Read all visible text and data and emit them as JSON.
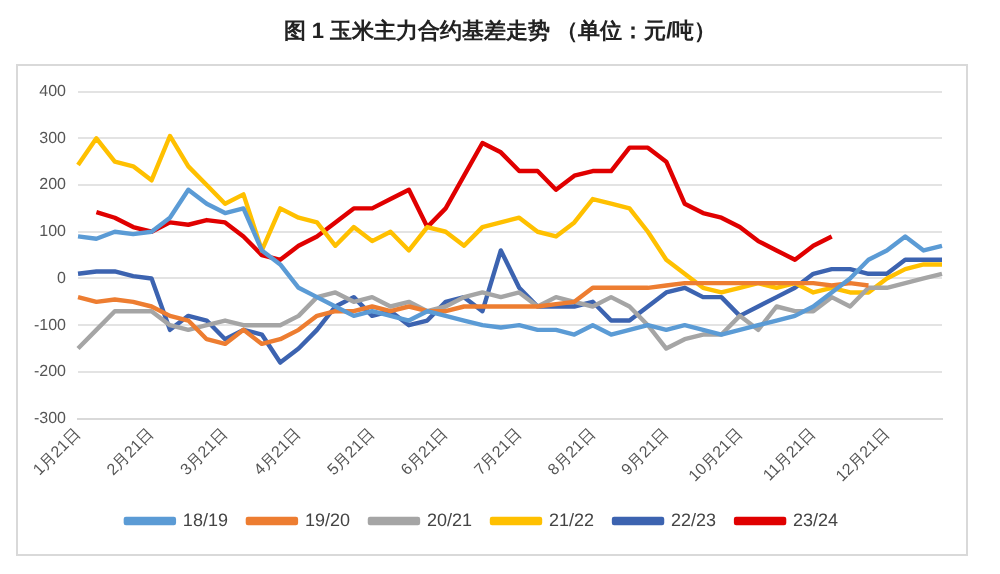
{
  "chart_data": {
    "type": "line",
    "title": "图 1  玉米主力合约基差走势  （单位：元/吨）",
    "categories": [
      "1月21日",
      null,
      null,
      null,
      "2月21日",
      null,
      null,
      null,
      "3月21日",
      null,
      null,
      null,
      "4月21日",
      null,
      null,
      null,
      "5月21日",
      null,
      null,
      null,
      "6月21日",
      null,
      null,
      null,
      "7月21日",
      null,
      null,
      null,
      "8月21日",
      null,
      null,
      null,
      "9月21日",
      null,
      null,
      null,
      "10月21日",
      null,
      null,
      null,
      "11月21日",
      null,
      null,
      null,
      "12月21日",
      null,
      null,
      null
    ],
    "series": [
      {
        "name": "18/19",
        "color": "#5b9bd5",
        "values": [
          90,
          85,
          100,
          95,
          100,
          130,
          190,
          160,
          140,
          150,
          60,
          30,
          -20,
          -40,
          -60,
          -80,
          -70,
          -80,
          -90,
          -70,
          -80,
          -90,
          -100,
          -105,
          -100,
          -110,
          -110,
          -120,
          -100,
          -120,
          -110,
          -100,
          -110,
          -100,
          -110,
          -120,
          -110,
          -100,
          -90,
          -80,
          -60,
          -30,
          0,
          40,
          60,
          90,
          60,
          70
        ]
      },
      {
        "name": "19/20",
        "color": "#ed7d31",
        "values": [
          -40,
          -50,
          -45,
          -50,
          -60,
          -80,
          -90,
          -130,
          -140,
          -110,
          -140,
          -130,
          -110,
          -80,
          -70,
          -70,
          -60,
          -70,
          -60,
          -70,
          -70,
          -60,
          -60,
          -60,
          -60,
          -60,
          -55,
          -50,
          -20,
          -20,
          -20,
          -20,
          -15,
          -10,
          -10,
          -10,
          -10,
          -10,
          -10,
          -10,
          -10,
          -15,
          -10,
          -15,
          null,
          null,
          null,
          null
        ]
      },
      {
        "name": "20/21",
        "color": "#a5a5a5",
        "values": [
          -150,
          -110,
          -70,
          -70,
          -70,
          -100,
          -110,
          -100,
          -90,
          -100,
          -100,
          -100,
          -80,
          -40,
          -30,
          -50,
          -40,
          -60,
          -50,
          -70,
          -60,
          -40,
          -30,
          -40,
          -30,
          -60,
          -40,
          -50,
          -60,
          -40,
          -60,
          -100,
          -150,
          -130,
          -120,
          -120,
          -80,
          -110,
          -60,
          -70,
          -70,
          -40,
          -60,
          -20,
          -20,
          -10,
          0,
          10
        ]
      },
      {
        "name": "21/22",
        "color": "#ffc000",
        "values": [
          243,
          300,
          250,
          240,
          210,
          305,
          240,
          200,
          160,
          180,
          60,
          150,
          130,
          120,
          70,
          110,
          80,
          100,
          60,
          110,
          100,
          70,
          110,
          120,
          130,
          100,
          90,
          120,
          170,
          160,
          150,
          100,
          40,
          10,
          -20,
          -30,
          -20,
          -10,
          -20,
          -10,
          -30,
          -20,
          -30,
          -30,
          0,
          20,
          30,
          30
        ]
      },
      {
        "name": "22/23",
        "color": "#3c63b0",
        "values": [
          10,
          15,
          15,
          5,
          0,
          -110,
          -80,
          -90,
          -130,
          -110,
          -120,
          -180,
          -150,
          -110,
          -60,
          -40,
          -80,
          -70,
          -100,
          -90,
          -50,
          -40,
          -70,
          60,
          -20,
          -60,
          -60,
          -60,
          -50,
          -90,
          -90,
          -60,
          -30,
          -20,
          -40,
          -40,
          -80,
          -60,
          -40,
          -20,
          10,
          20,
          20,
          10,
          10,
          40,
          40,
          40
        ]
      },
      {
        "name": "23/24",
        "color": "#e00000",
        "values": [
          null,
          142,
          130,
          110,
          100,
          120,
          115,
          125,
          120,
          90,
          50,
          40,
          70,
          90,
          120,
          150,
          150,
          170,
          190,
          110,
          150,
          220,
          290,
          270,
          230,
          230,
          190,
          220,
          230,
          230,
          280,
          280,
          250,
          160,
          140,
          130,
          110,
          80,
          60,
          40,
          70,
          90,
          null,
          null,
          null,
          null,
          null,
          null
        ]
      }
    ],
    "ylim": [
      -300,
      400
    ],
    "yticks": [
      -300,
      -200,
      -100,
      0,
      100,
      200,
      300,
      400
    ],
    "grid": "y",
    "legend": "bottom",
    "marker": "none",
    "line_style": "solid"
  }
}
